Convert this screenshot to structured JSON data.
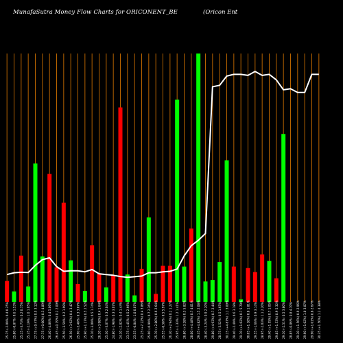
{
  "chart_data": {
    "type": "bar",
    "title": "MunafaSutra  Money Flow  Charts for ORICONENT_BE",
    "subtitle": "(Oricon  Ent",
    "xlabel": "",
    "ylabel": "",
    "ylim": [
      0,
      100
    ],
    "grid": true,
    "colors": {
      "background": "#000000",
      "grid": "#b86400",
      "up": "#00ff00",
      "down": "#ff0000",
      "line": "#ffffff",
      "text": "#ffffff"
    },
    "categories": [
      "25.75 (-2.09%) 0.4 0.25%",
      "25.80 (-0.87%) 0.6 1.53%",
      "25.15 (-3.73%) 0.2 0.75%",
      "25.35 (-2.19%) 1.0 1.05%",
      "27.75 (+9.47%) 0.5 3.12%",
      "27.75 (+0.00%) 0.3 4.89%",
      "26.40 (-4.86%) 0.4 5.06%",
      "26.45 (+0.19%) 0.2 2.09%",
      "25.50 (-3.59%) 0.2 1.99%",
      "26.50 (+3.92%) 0.4 3.47%",
      "25.60 (-3.40%) 0.3 3.07%",
      "25.90 (+1.17%) 0.5 2.52%",
      "25.10 (-3.09%) 0.5 1.74%",
      "26.10 (+3.98%) 0.4 1.64%",
      "25.30 (-3.07%) 0.3 2.04%",
      "24.80 (-1.98%) 0.3 3.07%",
      "24.10 (-2.82%) 0.4 1.44%",
      "23.75 (-1.45%) 0.5 2.66%",
      "23.55 (-0.84%) 1.0 0.07%",
      "25.25 (+7.22%) 0.4 3.86%",
      "25.00 (-0.99%) 0.7 2.36%",
      "25.70 (+2.80%) 0.6 2.64%",
      "25.55 (-0.58%) 0.5 5.97%",
      "26.30 (+2.94%) 0.2 1.27%",
      "25.95 (-1.33%) 1.2 1.41%",
      "26.80 (+3.28%) 0.3 5.82%",
      "28.00 (+4.48%) 0.7 4.01%",
      "29.35 (+4.82%) 1.5 2.08%",
      "28.40 (-3.24%) 0.9 2.20%",
      "29.80 (+4.93%) 0.7 2.44%",
      "28.75 (-3.52%) 0.5 1.65%",
      "30.15 (+4.87%) 1.1 3.09%",
      "29.40 (-2.49%) 0.6 3.18%",
      "29.70 (+1.02%) 0.7 5.79%",
      "30.05 (+1.18%) 0.8 1.81%",
      "29.55 (-1.66%) 0.9 3.14%",
      "28.95 (-2.03%) 1.1 2.20%",
      "29.40 (+1.55%) 0.7 1.05%",
      "29.85 (+1.53%) 0.9 5.32%",
      "29.10 (-2.51%) 0.5 3.80%",
      "28.85 (-0.86%) 0.8 4.70%",
      "29.30 (+1.56%) 0.9 2.96%",
      "29.60 (+1.02%) 1.0 3.07%",
      "29.90 (+1.01%) 0.8 2.67%",
      "30.35 (+1.50%) 1.2 4.38%"
    ],
    "series": [
      {
        "type": "bar",
        "values": [
          8.4,
          4.2,
          18.6,
          6.2,
          55.7,
          18.3,
          51.5,
          13.9,
          39.9,
          16.7,
          7.2,
          4.4,
          22.8,
          11.3,
          5.8,
          10.7,
          78.3,
          11.0,
          2.6,
          13.3,
          34.0,
          3.2,
          14.5,
          14.5,
          81.4,
          14.2,
          29.5,
          100.0,
          8.2,
          8.8,
          16.0,
          57.0,
          14.2,
          1.0,
          13.6,
          12.0,
          19.1,
          16.5,
          9.5,
          67.6,
          0,
          0,
          0,
          0,
          0
        ],
        "directions": [
          "down",
          "up",
          "down",
          "up",
          "up",
          "up",
          "down",
          "down",
          "down",
          "up",
          "down",
          "up",
          "down",
          "down",
          "up",
          "down",
          "down",
          "up",
          "up",
          "down",
          "up",
          "down",
          "down",
          "down",
          "up",
          "up",
          "down",
          "up",
          "up",
          "up",
          "up",
          "up",
          "down",
          "up",
          "down",
          "down",
          "down",
          "up",
          "down",
          "up",
          "up",
          "up",
          "up",
          "up",
          "up"
        ]
      },
      {
        "type": "line",
        "values": [
          11.0,
          11.7,
          11.9,
          11.8,
          14.7,
          17.0,
          17.7,
          14.2,
          12.3,
          12.5,
          12.5,
          12.1,
          13.0,
          11.3,
          11.0,
          10.7,
          10.2,
          9.9,
          10.1,
          10.4,
          11.7,
          11.7,
          12.1,
          12.3,
          13.2,
          18.5,
          22.6,
          24.8,
          27.5,
          86.6,
          87.2,
          90.9,
          91.6,
          91.6,
          91.2,
          92.8,
          91.2,
          91.6,
          89.4,
          85.4,
          85.8,
          84.3,
          84.3,
          91.6,
          91.6
        ],
        "x_count": 45
      }
    ]
  }
}
